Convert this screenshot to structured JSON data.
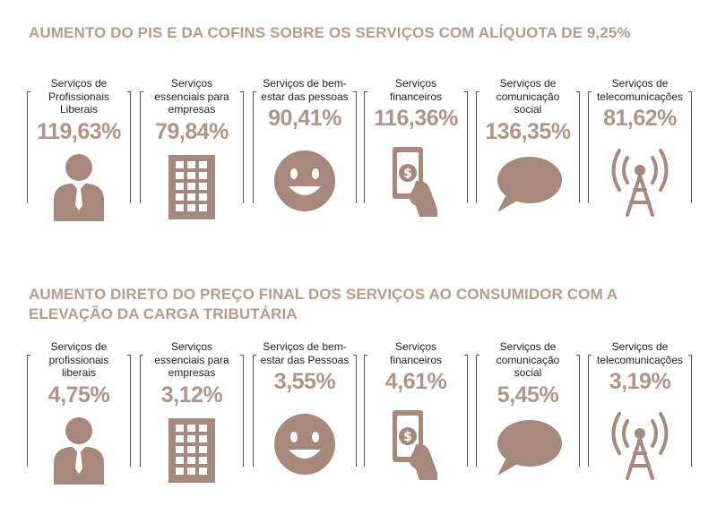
{
  "colors": {
    "accent": "#b09488",
    "title": "#b89a8a",
    "icon": "#a6897c",
    "frame": "#555555"
  },
  "chart_data": [
    {
      "type": "table",
      "title": "AUMENTO DO PIS E DA COFINS SOBRE OS SERVIÇOS COM ALÍQUOTA DE 9,25%",
      "categories": [
        "Serviços de Profissionais Liberais",
        "Serviços essenciais para empresas",
        "Serviços de bem-estar das pessoas",
        "Serviços financeiros",
        "Serviços de comunicação social",
        "Serviços de telecomunicações"
      ],
      "values": [
        119.63,
        79.84,
        90.41,
        116.36,
        136.35,
        81.62
      ],
      "items": [
        {
          "label": "Serviços de Profissionais Liberais",
          "value": "119,63%",
          "icon": "businessman-icon"
        },
        {
          "label": "Serviços essenciais para empresas",
          "value": "79,84%",
          "icon": "office-building-icon"
        },
        {
          "label": "Serviços de bem-estar das pessoas",
          "value": "90,41%",
          "icon": "smiley-face-icon"
        },
        {
          "label": "Serviços financeiros",
          "value": "116,36%",
          "icon": "money-hand-icon"
        },
        {
          "label": "Serviços de comunicação social",
          "value": "136,35%",
          "icon": "speech-bubble-icon"
        },
        {
          "label": "Serviços de telecomunicações",
          "value": "81,62%",
          "icon": "antenna-tower-icon"
        }
      ]
    },
    {
      "type": "table",
      "title": "AUMENTO DIRETO DO PREÇO FINAL DOS SERVIÇOS AO CONSUMIDOR COM A ELEVAÇÃO DA CARGA TRIBUTÁRIA",
      "categories": [
        "Serviços de profissionais liberais",
        "Serviços essenciais para empresas",
        "Serviços de bem-estar das Pessoas",
        "Serviços financeiros",
        "Serviços de comunicação social",
        "Serviços de telecomunicações"
      ],
      "values": [
        4.75,
        3.12,
        3.55,
        4.61,
        5.45,
        3.19
      ],
      "items": [
        {
          "label": "Serviços de profissionais liberais",
          "value": "4,75%",
          "icon": "businessman-icon"
        },
        {
          "label": "Serviços essenciais para empresas",
          "value": "3,12%",
          "icon": "office-building-icon"
        },
        {
          "label": "Serviços de bem-estar das Pessoas",
          "value": "3,55%",
          "icon": "smiley-face-icon"
        },
        {
          "label": "Serviços financeiros",
          "value": "4,61%",
          "icon": "money-hand-icon"
        },
        {
          "label": "Serviços de comunicação social",
          "value": "5,45%",
          "icon": "speech-bubble-icon"
        },
        {
          "label": "Serviços de telecomunicações",
          "value": "3,19%",
          "icon": "antenna-tower-icon"
        }
      ]
    }
  ]
}
